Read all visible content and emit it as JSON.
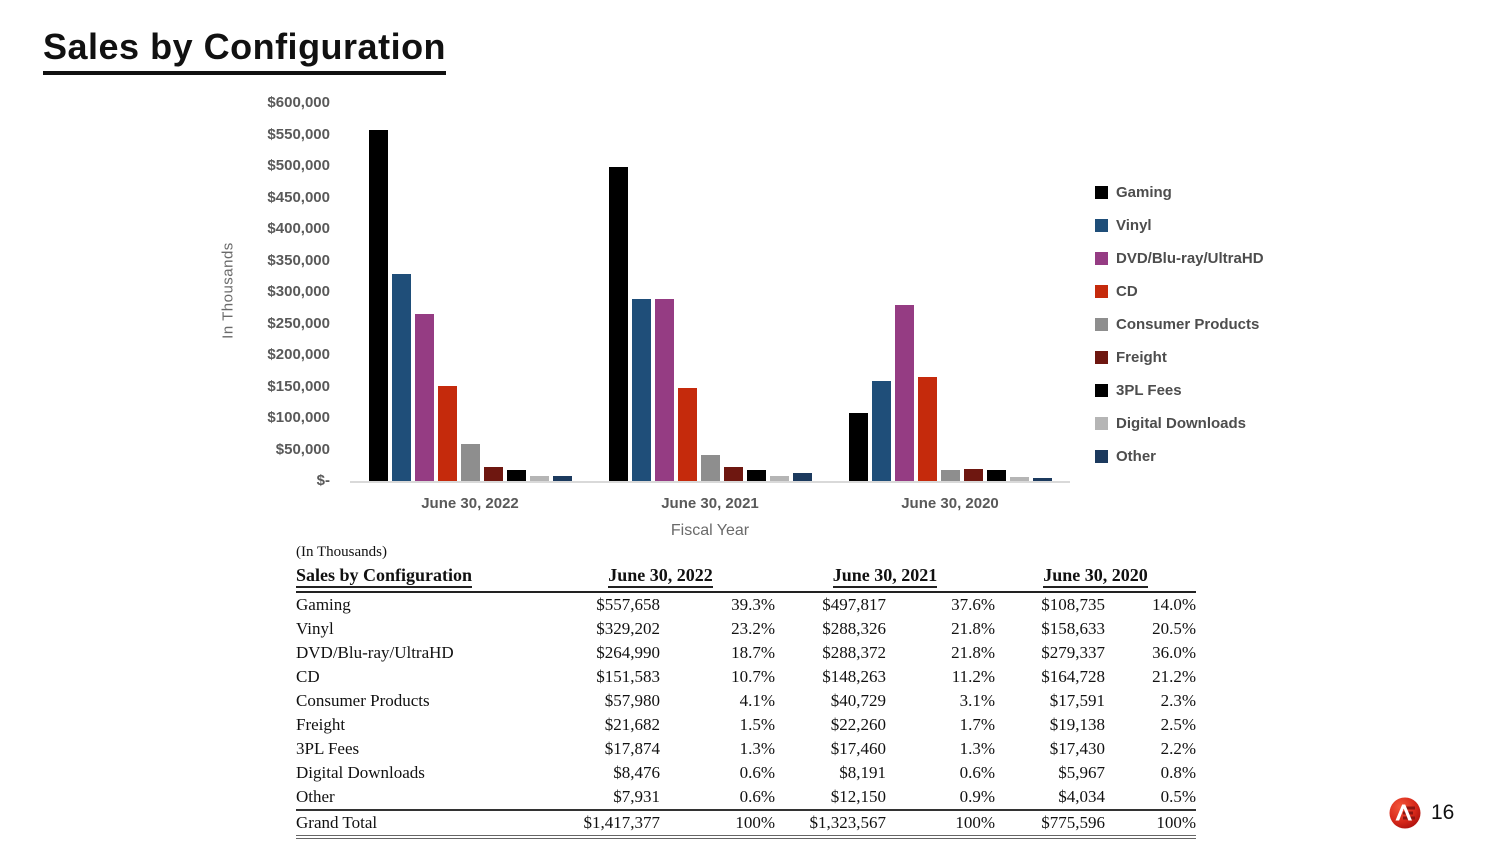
{
  "title": "Sales by Configuration",
  "chart_data": {
    "type": "bar",
    "title": "Sales by Configuration",
    "x_axis_title": "Fiscal Year",
    "y_axis_title": "In Thousands",
    "categories": [
      "June 30, 2022",
      "June 30, 2021",
      "June 30, 2020"
    ],
    "ylim": [
      0,
      600000
    ],
    "y_tick_step": 50000,
    "y_tick_labels": [
      "$600,000",
      "$550,000",
      "$500,000",
      "$450,000",
      "$400,000",
      "$350,000",
      "$300,000",
      "$250,000",
      "$200,000",
      "$150,000",
      "$100,000",
      "$50,000",
      "$-"
    ],
    "grid": false,
    "legend_position": "right",
    "axis_line_color": "#d9d9d9",
    "tick_label_color": "#595959",
    "series": [
      {
        "name": "Gaming",
        "color": "#000000",
        "values": [
          557658,
          497817,
          108735
        ]
      },
      {
        "name": "Vinyl",
        "color": "#1f4e79",
        "values": [
          329202,
          288326,
          158633
        ]
      },
      {
        "name": "DVD/Blu-ray/UltraHD",
        "color": "#953c83",
        "values": [
          264990,
          288372,
          279337
        ]
      },
      {
        "name": "CD",
        "color": "#c52a0c",
        "values": [
          151583,
          148263,
          164728
        ]
      },
      {
        "name": "Consumer Products",
        "color": "#8e8e8e",
        "values": [
          57980,
          40729,
          17591
        ]
      },
      {
        "name": "Freight",
        "color": "#6e1710",
        "values": [
          21682,
          22260,
          19138
        ]
      },
      {
        "name": "3PL Fees",
        "color": "#000000",
        "values": [
          17874,
          17460,
          17430
        ]
      },
      {
        "name": "Digital Downloads",
        "color": "#b5b5b5",
        "values": [
          8476,
          8191,
          5967
        ]
      },
      {
        "name": "Other",
        "color": "#1c3a5e",
        "values": [
          7931,
          12150,
          4034
        ]
      }
    ]
  },
  "table": {
    "note": "(In Thousands)",
    "header_label": "Sales by Configuration",
    "year_headers": [
      "June 30, 2022",
      "June 30, 2021",
      "June 30, 2020"
    ],
    "rows": [
      {
        "label": "Gaming",
        "cells": [
          "$557,658",
          "39.3%",
          "$497,817",
          "37.6%",
          "$108,735",
          "14.0%"
        ]
      },
      {
        "label": "Vinyl",
        "cells": [
          "$329,202",
          "23.2%",
          "$288,326",
          "21.8%",
          "$158,633",
          "20.5%"
        ]
      },
      {
        "label": "DVD/Blu-ray/UltraHD",
        "cells": [
          "$264,990",
          "18.7%",
          "$288,372",
          "21.8%",
          "$279,337",
          "36.0%"
        ]
      },
      {
        "label": "CD",
        "cells": [
          "$151,583",
          "10.7%",
          "$148,263",
          "11.2%",
          "$164,728",
          "21.2%"
        ]
      },
      {
        "label": "Consumer Products",
        "cells": [
          "$57,980",
          "4.1%",
          "$40,729",
          "3.1%",
          "$17,591",
          "2.3%"
        ]
      },
      {
        "label": "Freight",
        "cells": [
          "$21,682",
          "1.5%",
          "$22,260",
          "1.7%",
          "$19,138",
          "2.5%"
        ]
      },
      {
        "label": "3PL Fees",
        "cells": [
          "$17,874",
          "1.3%",
          "$17,460",
          "1.3%",
          "$17,430",
          "2.2%"
        ]
      },
      {
        "label": "Digital Downloads",
        "cells": [
          "$8,476",
          "0.6%",
          "$8,191",
          "0.6%",
          "$5,967",
          "0.8%"
        ]
      },
      {
        "label": "Other",
        "cells": [
          "$7,931",
          "0.6%",
          "$12,150",
          "0.9%",
          "$4,034",
          "0.5%"
        ]
      }
    ],
    "total_row": {
      "label": "Grand Total",
      "cells": [
        "$1,417,377",
        "100%",
        "$1,323,567",
        "100%",
        "$775,596",
        "100%"
      ]
    }
  },
  "footer": {
    "page_number": "16",
    "logo_text": "AE",
    "logo_color": "#cc1f14"
  }
}
